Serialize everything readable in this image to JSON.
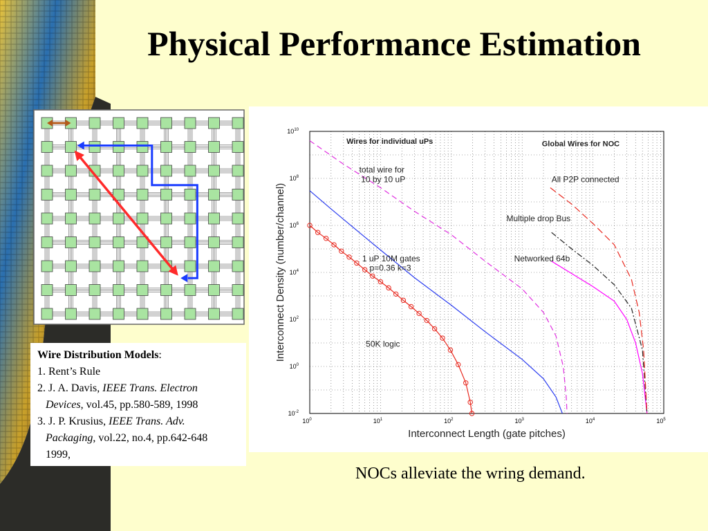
{
  "slide": {
    "title": "Physical Performance Estimation",
    "caption": "NOCs alleviate the wring demand."
  },
  "references": {
    "heading": "Wire Distribution Models",
    "heading_suffix": ":",
    "items": [
      {
        "prefix": "1. Rent’s Rule",
        "italic": "",
        "suffix": "",
        "cont_italic": "",
        "cont_suffix": ""
      },
      {
        "prefix": "2. J. A. Davis, ",
        "italic": "IEEE Trans. Electron",
        "suffix": "",
        "cont_italic": "Devices",
        "cont_suffix": ", vol.45, pp.580-589, 1998"
      },
      {
        "prefix": "3. J. P. Krusius, ",
        "italic": "IEEE Trans. Adv.",
        "suffix": "",
        "cont_italic": "Packaging",
        "cont_suffix": ", vol.22, no.4, pp.642-648"
      }
    ],
    "last_line": "1999,"
  },
  "grid": {
    "rows": 9,
    "cols": 9,
    "node_color": "#a9e4a1",
    "red_arrow_color": "#ff2a2a",
    "blue_path_color": "#1a3cff",
    "brown_arrow_color": "#b35a1a"
  },
  "chart_data": {
    "type": "line",
    "xscale": "log",
    "yscale": "log",
    "xlim": [
      1,
      100000
    ],
    "ylim": [
      0.01,
      10000000000
    ],
    "xlabel": "Interconnect Length  (gate pitches)",
    "ylabel": "Interconnect Density (number/channel)",
    "xticks": [
      {
        "base": "10",
        "exp": "0"
      },
      {
        "base": "10",
        "exp": "1"
      },
      {
        "base": "10",
        "exp": "2"
      },
      {
        "base": "10",
        "exp": "3"
      },
      {
        "base": "10",
        "exp": "4"
      },
      {
        "base": "10",
        "exp": "5"
      }
    ],
    "yticks": [
      {
        "base": "10",
        "exp": "-2"
      },
      {
        "base": "10",
        "exp": "0"
      },
      {
        "base": "10",
        "exp": "2"
      },
      {
        "base": "10",
        "exp": "4"
      },
      {
        "base": "10",
        "exp": "6"
      },
      {
        "base": "10",
        "exp": "8"
      },
      {
        "base": "10",
        "exp": "10"
      }
    ],
    "grid": true,
    "annotations": [
      {
        "text": "Wires for individual uPs",
        "x": 3.3,
        "y": 3000000000,
        "bold": true
      },
      {
        "text": "Global Wires for NOC",
        "x": 1900,
        "y": 2300000000,
        "bold": true
      },
      {
        "text": "total wire for",
        "x": 5.0,
        "y": 180000000,
        "bold": false
      },
      {
        "text": "10 by 10 uP",
        "x": 5.3,
        "y": 70000000,
        "bold": false
      },
      {
        "text": "All P2P  connected",
        "x": 2600,
        "y": 70000000,
        "bold": false
      },
      {
        "text": "Multiple drop Bus",
        "x": 600,
        "y": 1500000,
        "bold": false
      },
      {
        "text": "1 uP  10M gates",
        "x": 5.5,
        "y": 30000,
        "bold": false
      },
      {
        "text": "p=0.36 k=3",
        "x": 7.0,
        "y": 12000,
        "bold": false
      },
      {
        "text": "Networked 64b",
        "x": 770,
        "y": 30000,
        "bold": false
      },
      {
        "text": "50K logic",
        "x": 6.2,
        "y": 7,
        "bold": false
      }
    ],
    "series": [
      {
        "color": "#e8281e",
        "dash": "none",
        "markers": "circle",
        "points": [
          [
            1,
            1000000
          ],
          [
            1.3,
            500000
          ],
          [
            1.7,
            280000
          ],
          [
            2.2,
            150000
          ],
          [
            2.8,
            80000
          ],
          [
            3.6,
            45000
          ],
          [
            4.6,
            25000
          ],
          [
            6,
            13000
          ],
          [
            7.7,
            7000
          ],
          [
            10,
            4000
          ],
          [
            13,
            2200
          ],
          [
            16.5,
            1200
          ],
          [
            21,
            650
          ],
          [
            27,
            350
          ],
          [
            35,
            180
          ],
          [
            45,
            90
          ],
          [
            58,
            40
          ],
          [
            75,
            16
          ],
          [
            97,
            5
          ],
          [
            125,
            1.2
          ],
          [
            160,
            0.2
          ],
          [
            185,
            0.03
          ],
          [
            195,
            0.01
          ]
        ]
      },
      {
        "color": "#2a3cf0",
        "dash": "none",
        "markers": "none",
        "points": [
          [
            1,
            30000000
          ],
          [
            2,
            5000000
          ],
          [
            5,
            500000
          ],
          [
            10,
            90000
          ],
          [
            30,
            6000
          ],
          [
            100,
            400
          ],
          [
            300,
            30
          ],
          [
            1000,
            2
          ],
          [
            2000,
            0.3
          ],
          [
            3000,
            0.05
          ],
          [
            3700,
            0.01
          ]
        ]
      },
      {
        "color": "#e030e0",
        "dash": "8,5",
        "markers": "none",
        "points": [
          [
            1,
            4000000000
          ],
          [
            3,
            400000000
          ],
          [
            10,
            40000000
          ],
          [
            30,
            4000000
          ],
          [
            100,
            400000
          ],
          [
            300,
            30000
          ],
          [
            1000,
            2000
          ],
          [
            2000,
            200
          ],
          [
            3000,
            20
          ],
          [
            3800,
            1
          ],
          [
            4200,
            0.05
          ],
          [
            4300,
            0.01
          ]
        ]
      },
      {
        "color": "#ff00ff",
        "dash": "none",
        "markers": "none",
        "points": [
          [
            2600,
            30000
          ],
          [
            5000,
            9000
          ],
          [
            10000,
            2500
          ],
          [
            20000,
            600
          ],
          [
            30000,
            100
          ],
          [
            40000,
            10
          ],
          [
            50000,
            0.5
          ],
          [
            58000,
            0.01
          ]
        ]
      },
      {
        "color": "#222222",
        "dash": "8,3,2,3",
        "markers": "none",
        "points": [
          [
            2600,
            500000
          ],
          [
            5000,
            100000
          ],
          [
            10000,
            20000
          ],
          [
            20000,
            3000
          ],
          [
            35000,
            300
          ],
          [
            50000,
            5
          ],
          [
            58000,
            0.01
          ]
        ]
      },
      {
        "color": "#e8281e",
        "dash": "10,5",
        "markers": "none",
        "points": [
          [
            2500,
            40000000
          ],
          [
            5000,
            8000000
          ],
          [
            10000,
            1200000
          ],
          [
            20000,
            150000
          ],
          [
            35000,
            5000
          ],
          [
            45000,
            200
          ],
          [
            52000,
            5
          ],
          [
            58000,
            0.01
          ]
        ]
      }
    ]
  }
}
